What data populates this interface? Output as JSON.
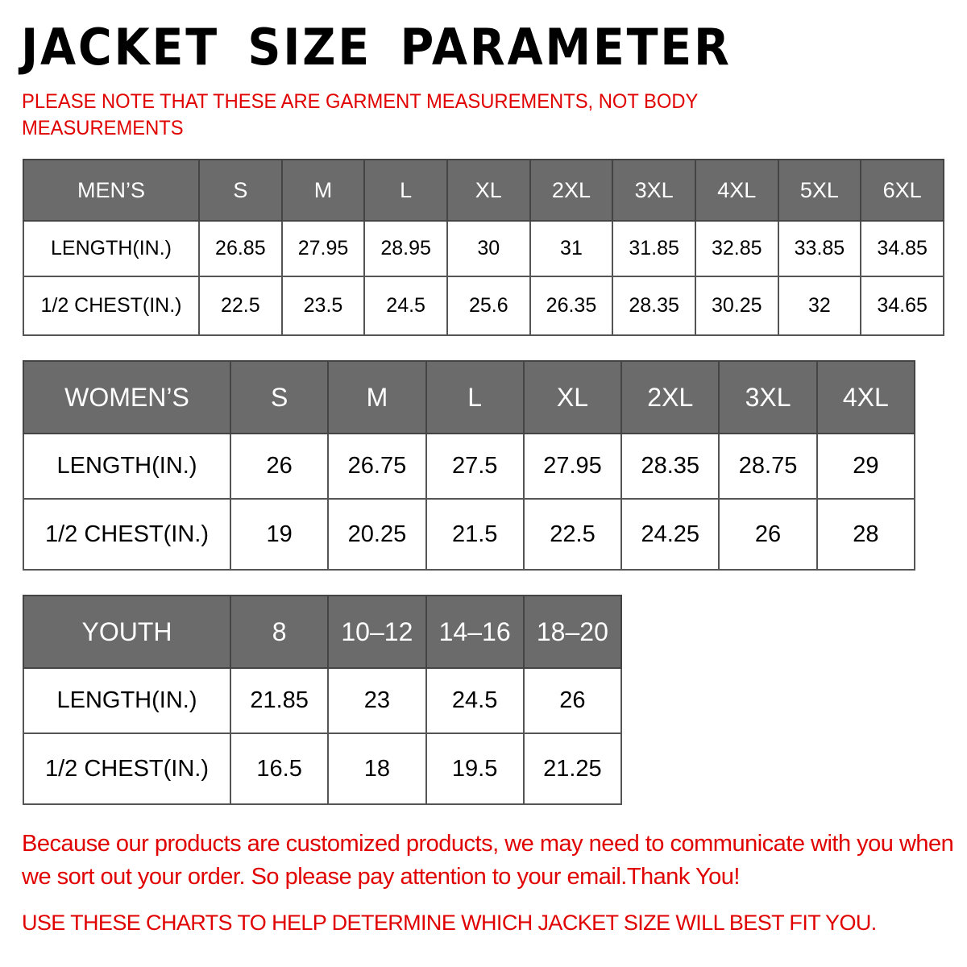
{
  "title": "JACKET SIZE PARAMETER",
  "note": "PLEASE NOTE THAT THESE ARE GARMENT MEASUREMENTS, NOT BODY MEASUREMENTS",
  "colors": {
    "header_bg": "#6b6b6b",
    "accent_red": "#e00000"
  },
  "tables": {
    "men": {
      "label": "MEN’S",
      "sizes": [
        "S",
        "M",
        "L",
        "XL",
        "2XL",
        "3XL",
        "4XL",
        "5XL",
        "6XL"
      ],
      "rows": [
        {
          "label": "LENGTH(IN.)",
          "values": [
            "26.85",
            "27.95",
            "28.95",
            "30",
            "31",
            "31.85",
            "32.85",
            "33.85",
            "34.85"
          ]
        },
        {
          "label": "1/2 CHEST(IN.)",
          "values": [
            "22.5",
            "23.5",
            "24.5",
            "25.6",
            "26.35",
            "28.35",
            "30.25",
            "32",
            "34.65"
          ]
        }
      ]
    },
    "women": {
      "label": "WOMEN’S",
      "sizes": [
        "S",
        "M",
        "L",
        "XL",
        "2XL",
        "3XL",
        "4XL"
      ],
      "rows": [
        {
          "label": "LENGTH(IN.)",
          "values": [
            "26",
            "26.75",
            "27.5",
            "27.95",
            "28.35",
            "28.75",
            "29"
          ]
        },
        {
          "label": "1/2 CHEST(IN.)",
          "values": [
            "19",
            "20.25",
            "21.5",
            "22.5",
            "24.25",
            "26",
            "28"
          ]
        }
      ]
    },
    "youth": {
      "label": "YOUTH",
      "sizes": [
        "8",
        "10–12",
        "14–16",
        "18–20"
      ],
      "rows": [
        {
          "label": "LENGTH(IN.)",
          "values": [
            "21.85",
            "23",
            "24.5",
            "26"
          ]
        },
        {
          "label": "1/2 CHEST(IN.)",
          "values": [
            "16.5",
            "18",
            "19.5",
            "21.25"
          ]
        }
      ]
    }
  },
  "message": "Because our products are customized products, we may need to communicate with you when we sort out your order. So please pay attention to your email.Thank You!",
  "footer": "USE THESE CHARTS TO HELP DETERMINE WHICH JACKET SIZE WILL BEST FIT YOU."
}
